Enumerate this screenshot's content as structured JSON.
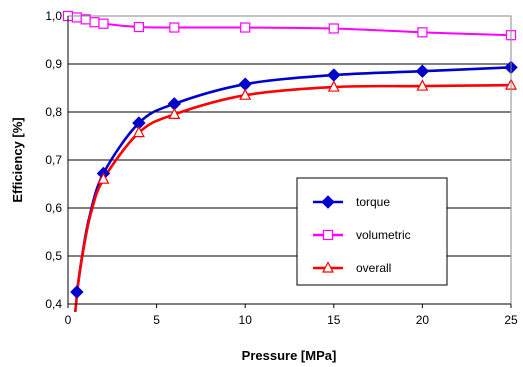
{
  "chart_data": {
    "type": "line",
    "xlabel": "Pressure  [MPa]",
    "ylabel": "Efficiency  [%]",
    "xlim": [
      0,
      25
    ],
    "ylim": [
      0.4,
      1.0
    ],
    "x_ticks": [
      "0",
      "5",
      "10",
      "15",
      "20",
      "25"
    ],
    "y_ticks": [
      "0,4",
      "0,5",
      "0,6",
      "0,7",
      "0,8",
      "0,9",
      "1,0"
    ],
    "grid": true,
    "legend_position": "lower-right",
    "series": [
      {
        "name": "torque",
        "color": "#0000cc",
        "marker": "diamond",
        "x": [
          0.5,
          2,
          4,
          6,
          10,
          15,
          20,
          25
        ],
        "y": [
          0.425,
          0.672,
          0.777,
          0.817,
          0.858,
          0.877,
          0.885,
          0.893
        ],
        "curve_y": [
          0.425,
          0.5,
          0.58,
          0.672,
          0.777,
          0.817,
          0.858,
          0.877,
          0.885,
          0.893
        ],
        "curve_x": [
          0.5,
          0.8,
          1.2,
          2,
          4,
          6,
          10,
          15,
          20,
          25
        ]
      },
      {
        "name": "volumetric",
        "color": "#ff00ff",
        "marker": "square",
        "x": [
          0,
          0.5,
          1,
          1.5,
          2,
          4,
          6,
          10,
          15,
          20,
          25
        ],
        "y": [
          1.0,
          0.997,
          0.993,
          0.987,
          0.984,
          0.977,
          0.976,
          0.976,
          0.974,
          0.966,
          0.96
        ],
        "curve_x": [
          0,
          0.5,
          1,
          1.5,
          2,
          4,
          6,
          10,
          15,
          20,
          25
        ],
        "curve_y": [
          1.0,
          0.997,
          0.993,
          0.987,
          0.984,
          0.977,
          0.976,
          0.976,
          0.974,
          0.966,
          0.96
        ]
      },
      {
        "name": "overall",
        "color": "#ff0000",
        "marker": "triangle",
        "x": [
          2,
          4,
          6,
          10,
          15,
          20,
          25
        ],
        "y": [
          0.66,
          0.757,
          0.795,
          0.835,
          0.852,
          0.854,
          0.856
        ],
        "curve_x": [
          0.4,
          0.6,
          0.9,
          1.3,
          2,
          4,
          6,
          10,
          15,
          20,
          25
        ],
        "curve_y": [
          0.38,
          0.45,
          0.52,
          0.59,
          0.66,
          0.757,
          0.795,
          0.835,
          0.852,
          0.854,
          0.856
        ]
      }
    ]
  }
}
